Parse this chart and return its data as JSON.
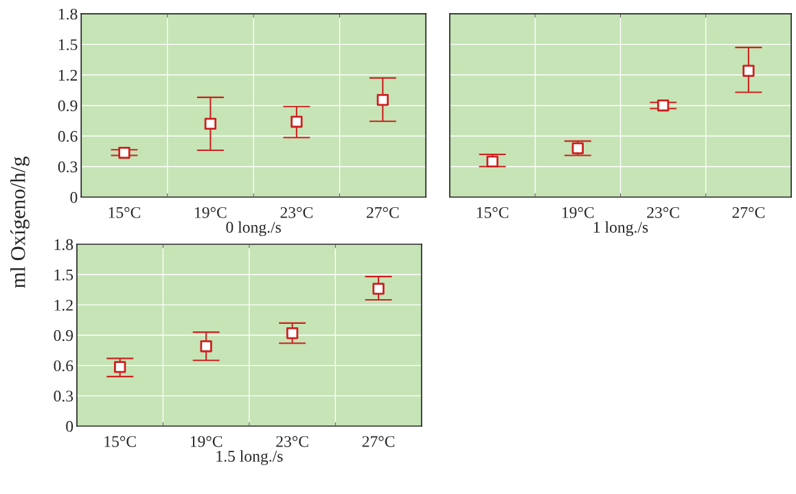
{
  "chart_data": [
    {
      "type": "scatter",
      "ylabel": "ml Oxígeno/h/g",
      "xlabel": "0 long./s",
      "categories": [
        "15°C",
        "19°C",
        "23°C",
        "27°C"
      ],
      "values": [
        0.435,
        0.72,
        0.74,
        0.955
      ],
      "errors": [
        [
          0.41,
          0.465
        ],
        [
          0.46,
          0.98
        ],
        [
          0.585,
          0.89
        ],
        [
          0.745,
          1.17
        ]
      ],
      "color": "#cc2020",
      "marker": "square",
      "ylim": [
        0,
        1.8
      ],
      "yticks": [
        0,
        0.3,
        0.6,
        0.9,
        1.2,
        1.5,
        1.8
      ],
      "grid": true
    },
    {
      "type": "scatter",
      "xlabel": "1 long./s",
      "categories": [
        "15°C",
        "19°C",
        "23°C",
        "27°C"
      ],
      "values": [
        0.35,
        0.48,
        0.9,
        1.24
      ],
      "errors": [
        [
          0.3,
          0.42
        ],
        [
          0.41,
          0.55
        ],
        [
          0.87,
          0.93
        ],
        [
          1.03,
          1.47
        ]
      ],
      "color": "#cc2020",
      "marker": "square",
      "ylim": [
        0,
        1.8
      ],
      "yticks": [
        0,
        0.3,
        0.6,
        0.9,
        1.2,
        1.5,
        1.8
      ],
      "tick_labels": "x",
      "grid": true
    },
    {
      "type": "scatter",
      "xlabel": "1.5 long./s",
      "categories": [
        "15°C",
        "19°C",
        "23°C",
        "27°C"
      ],
      "values": [
        0.585,
        0.79,
        0.92,
        1.36
      ],
      "errors": [
        [
          0.49,
          0.67
        ],
        [
          0.65,
          0.93
        ],
        [
          0.82,
          1.02
        ],
        [
          1.25,
          1.48
        ]
      ],
      "color": "#cc2020",
      "marker": "square",
      "ylim": [
        0,
        1.8
      ],
      "yticks": [
        0,
        0.3,
        0.6,
        0.9,
        1.2,
        1.5,
        1.8
      ],
      "grid": true
    }
  ]
}
